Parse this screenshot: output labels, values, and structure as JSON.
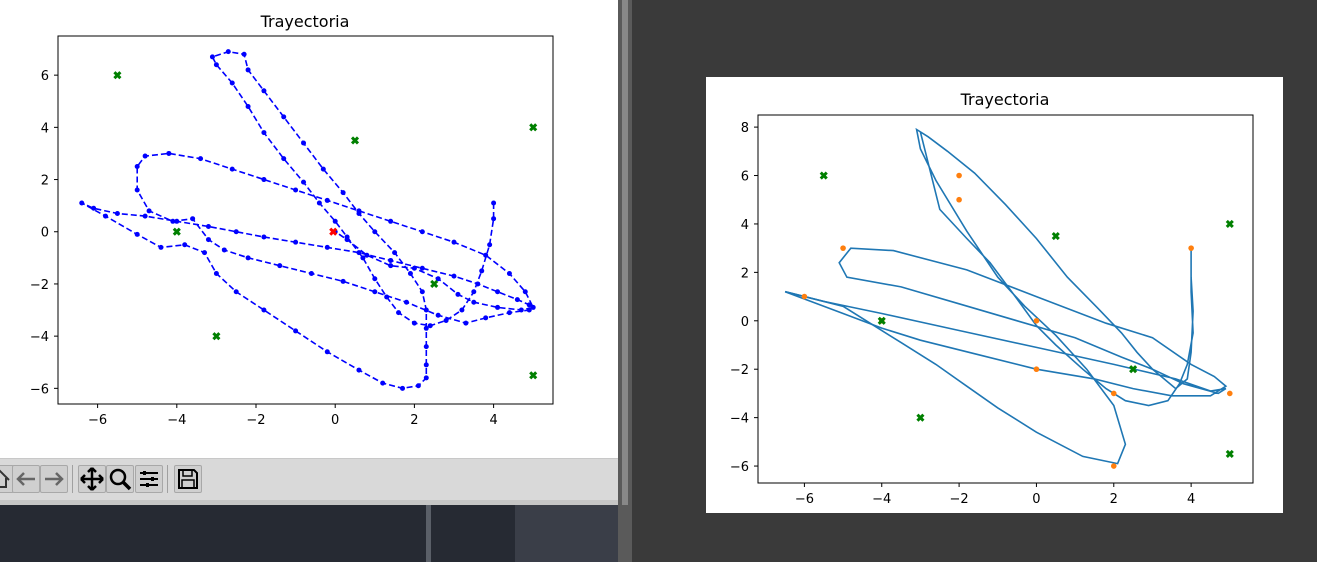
{
  "left_plot": {
    "chart_data": {
      "type": "scatter",
      "title": "Trayectoria",
      "xlim": [
        -7,
        5.5
      ],
      "ylim": [
        -6.6,
        7.5
      ],
      "x_ticks": [
        -6,
        -4,
        -2,
        0,
        2,
        4
      ],
      "y_ticks": [
        -6,
        -4,
        -2,
        0,
        2,
        4,
        6
      ],
      "grid": false,
      "series": [
        {
          "style": "blue dashed line with dot markers",
          "color": "#0000ff",
          "points": [
            [
              4.0,
              1.1
            ],
            [
              4.0,
              0.5
            ],
            [
              3.9,
              -0.5
            ],
            [
              3.7,
              -1.5
            ],
            [
              3.5,
              -2.3
            ],
            [
              3.2,
              -3.0
            ],
            [
              2.8,
              -3.4
            ],
            [
              2.4,
              -3.6
            ],
            [
              2.0,
              -3.5
            ],
            [
              1.6,
              -3.1
            ],
            [
              1.3,
              -2.5
            ],
            [
              1.0,
              -1.8
            ],
            [
              0.7,
              -1.0
            ],
            [
              0.3,
              -0.2
            ],
            [
              0.0,
              0.4
            ],
            [
              -0.4,
              1.1
            ],
            [
              -0.8,
              1.9
            ],
            [
              -1.3,
              2.8
            ],
            [
              -1.8,
              3.8
            ],
            [
              -2.2,
              4.8
            ],
            [
              -2.6,
              5.7
            ],
            [
              -3.0,
              6.4
            ],
            [
              -3.1,
              6.7
            ],
            [
              -2.7,
              6.9
            ],
            [
              -2.3,
              6.8
            ],
            [
              -2.2,
              6.2
            ],
            [
              -1.8,
              5.4
            ],
            [
              -1.3,
              4.4
            ],
            [
              -0.8,
              3.4
            ],
            [
              -0.3,
              2.4
            ],
            [
              0.2,
              1.5
            ],
            [
              0.6,
              0.7
            ],
            [
              1.0,
              0.0
            ],
            [
              1.5,
              -0.8
            ],
            [
              1.9,
              -1.6
            ],
            [
              2.2,
              -2.3
            ],
            [
              2.3,
              -3.0
            ],
            [
              2.3,
              -3.7
            ],
            [
              2.3,
              -4.4
            ],
            [
              2.3,
              -5.1
            ],
            [
              2.3,
              -5.6
            ],
            [
              2.1,
              -5.9
            ],
            [
              1.7,
              -6.0
            ],
            [
              1.2,
              -5.8
            ],
            [
              0.6,
              -5.3
            ],
            [
              -0.2,
              -4.6
            ],
            [
              -1.0,
              -3.8
            ],
            [
              -1.8,
              -3.0
            ],
            [
              -2.5,
              -2.3
            ],
            [
              -3.0,
              -1.6
            ],
            [
              -3.3,
              -0.8
            ],
            [
              -3.8,
              -0.5
            ],
            [
              -4.4,
              -0.6
            ],
            [
              -5.0,
              -0.1
            ],
            [
              -5.8,
              0.6
            ],
            [
              -6.4,
              1.1
            ],
            [
              -6.1,
              0.9
            ],
            [
              -5.5,
              0.7
            ],
            [
              -4.8,
              0.6
            ],
            [
              -4.0,
              0.4
            ],
            [
              -3.2,
              0.2
            ],
            [
              -2.5,
              0.0
            ],
            [
              -1.8,
              -0.2
            ],
            [
              -1.0,
              -0.4
            ],
            [
              -0.2,
              -0.6
            ],
            [
              0.6,
              -0.8
            ],
            [
              1.4,
              -1.1
            ],
            [
              2.2,
              -1.4
            ],
            [
              3.0,
              -1.7
            ],
            [
              3.6,
              -2.0
            ],
            [
              4.1,
              -2.3
            ],
            [
              4.6,
              -2.6
            ],
            [
              4.9,
              -2.8
            ],
            [
              4.9,
              -3.0
            ],
            [
              4.4,
              -3.1
            ],
            [
              3.8,
              -3.3
            ],
            [
              3.3,
              -3.5
            ],
            [
              2.6,
              -3.2
            ],
            [
              1.8,
              -2.7
            ],
            [
              1.0,
              -2.3
            ],
            [
              0.2,
              -1.9
            ],
            [
              -0.6,
              -1.6
            ],
            [
              -1.4,
              -1.3
            ],
            [
              -2.2,
              -1.0
            ],
            [
              -2.8,
              -0.7
            ],
            [
              -3.2,
              -0.3
            ],
            [
              -3.6,
              0.5
            ],
            [
              -4.1,
              0.4
            ],
            [
              -4.7,
              0.8
            ],
            [
              -5.0,
              1.6
            ],
            [
              -5.0,
              2.5
            ],
            [
              -4.8,
              2.9
            ],
            [
              -4.2,
              3.0
            ],
            [
              -3.4,
              2.8
            ],
            [
              -2.6,
              2.4
            ],
            [
              -1.8,
              2.0
            ],
            [
              -1.0,
              1.6
            ],
            [
              -0.2,
              1.2
            ],
            [
              0.6,
              0.8
            ],
            [
              1.4,
              0.4
            ],
            [
              2.2,
              0.0
            ],
            [
              3.0,
              -0.4
            ],
            [
              3.8,
              -0.9
            ],
            [
              4.4,
              -1.6
            ],
            [
              4.8,
              -2.3
            ],
            [
              5.0,
              -2.9
            ],
            [
              4.7,
              -3.0
            ],
            [
              4.1,
              -2.9
            ],
            [
              3.5,
              -2.7
            ],
            [
              3.1,
              -2.4
            ],
            [
              2.6,
              -1.8
            ],
            [
              2.0,
              -1.4
            ],
            [
              1.4,
              -1.3
            ],
            [
              0.8,
              -0.9
            ],
            [
              0.3,
              -0.3
            ],
            [
              0.0,
              0.0
            ]
          ]
        },
        {
          "style": "start marker red x",
          "color": "#ff0000",
          "points": [
            [
              -0.05,
              0.0
            ]
          ]
        },
        {
          "style": "green x markers",
          "color": "#008000",
          "points": [
            [
              -5.5,
              6
            ],
            [
              -4,
              0
            ],
            [
              -3,
              -4
            ],
            [
              0.5,
              3.5
            ],
            [
              2.5,
              -2
            ],
            [
              5,
              4
            ],
            [
              5,
              -5.5
            ]
          ]
        }
      ]
    }
  },
  "left_toolbar": {
    "icons": [
      "home-icon",
      "back-icon",
      "forward-icon",
      "pan-icon",
      "zoom-icon",
      "configure-subplots-icon",
      "save-icon"
    ]
  },
  "right_plot": {
    "chart_data": {
      "type": "line",
      "title": "Trayectoria",
      "xlim": [
        -7.2,
        5.6
      ],
      "ylim": [
        -6.7,
        8.5
      ],
      "x_ticks": [
        -6,
        -4,
        -2,
        0,
        2,
        4
      ],
      "y_ticks": [
        -6,
        -4,
        -2,
        0,
        2,
        4,
        6,
        8
      ],
      "grid": false,
      "series": [
        {
          "style": "steelblue solid line",
          "color": "#1f77b4",
          "points": [
            [
              -6.5,
              1.2
            ],
            [
              -5.0,
              0.6
            ],
            [
              -4.3,
              -0.1
            ],
            [
              -3.5,
              -0.9
            ],
            [
              -2.6,
              -1.8
            ],
            [
              -1.8,
              -2.7
            ],
            [
              -1.0,
              -3.6
            ],
            [
              0.0,
              -4.6
            ],
            [
              1.2,
              -5.6
            ],
            [
              2.1,
              -5.9
            ],
            [
              2.3,
              -5.1
            ],
            [
              2.0,
              -3.5
            ],
            [
              1.3,
              -2.0
            ],
            [
              0.5,
              -0.6
            ],
            [
              -0.3,
              0.6
            ],
            [
              -1.0,
              1.8
            ],
            [
              -1.8,
              3.7
            ],
            [
              -2.6,
              5.8
            ],
            [
              -3.0,
              7.1
            ],
            [
              -3.1,
              7.9
            ],
            [
              -2.8,
              7.6
            ],
            [
              -2.3,
              7.0
            ],
            [
              -1.6,
              6.1
            ],
            [
              -0.8,
              4.8
            ],
            [
              0.0,
              3.4
            ],
            [
              0.8,
              1.8
            ],
            [
              1.6,
              0.5
            ],
            [
              2.2,
              -0.5
            ],
            [
              2.6,
              -1.3
            ],
            [
              3.0,
              -2.0
            ],
            [
              3.6,
              -2.8
            ],
            [
              3.9,
              -2.4
            ],
            [
              4.0,
              -1.3
            ],
            [
              4.05,
              0.4
            ],
            [
              4.0,
              1.8
            ],
            [
              4.0,
              3.0
            ],
            [
              4.0,
              1.2
            ],
            [
              4.05,
              -0.5
            ],
            [
              3.9,
              -1.8
            ],
            [
              3.7,
              -2.6
            ],
            [
              3.4,
              -3.3
            ],
            [
              2.9,
              -3.5
            ],
            [
              2.3,
              -3.3
            ],
            [
              1.8,
              -2.8
            ],
            [
              1.2,
              -2.0
            ],
            [
              0.5,
              -1.0
            ],
            [
              0.0,
              -0.2
            ],
            [
              -0.5,
              0.9
            ],
            [
              -1.2,
              2.4
            ],
            [
              -1.8,
              3.4
            ],
            [
              -2.5,
              4.6
            ],
            [
              -3.0,
              7.8
            ]
          ]
        },
        {
          "style": "steelblue solid line (second loop)",
          "color": "#1f77b4",
          "points": [
            [
              -6.5,
              1.2
            ],
            [
              -5.5,
              0.8
            ],
            [
              -4.0,
              0.3
            ],
            [
              -2.0,
              -0.4
            ],
            [
              0.0,
              -1.1
            ],
            [
              2.0,
              -1.8
            ],
            [
              3.6,
              -2.4
            ],
            [
              4.5,
              -2.9
            ],
            [
              4.9,
              -2.8
            ],
            [
              4.7,
              -3.0
            ],
            [
              3.8,
              -2.6
            ],
            [
              3.0,
              -2.0
            ],
            [
              2.2,
              -1.5
            ],
            [
              1.0,
              -0.7
            ],
            [
              -0.5,
              0.0
            ],
            [
              -2.0,
              0.7
            ],
            [
              -3.5,
              1.4
            ],
            [
              -4.9,
              1.8
            ],
            [
              -5.1,
              2.4
            ],
            [
              -4.8,
              3.0
            ],
            [
              -3.7,
              2.9
            ],
            [
              -1.8,
              2.1
            ],
            [
              0.0,
              1.0
            ],
            [
              1.8,
              -0.1
            ],
            [
              3.0,
              -0.7
            ],
            [
              4.0,
              -1.8
            ],
            [
              4.6,
              -2.3
            ],
            [
              4.9,
              -2.7
            ],
            [
              4.5,
              -3.1
            ],
            [
              3.5,
              -3.1
            ],
            [
              2.5,
              -2.8
            ],
            [
              1.5,
              -2.4
            ],
            [
              0.0,
              -2.0
            ],
            [
              -1.5,
              -1.4
            ],
            [
              -3.0,
              -0.8
            ],
            [
              -4.0,
              -0.3
            ],
            [
              -5.0,
              0.3
            ],
            [
              -6.5,
              1.2
            ]
          ]
        },
        {
          "style": "orange dot markers",
          "color": "#ff7f0e",
          "points": [
            [
              -6,
              1
            ],
            [
              -5,
              3
            ],
            [
              -4,
              0
            ],
            [
              -2,
              5
            ],
            [
              -2,
              6
            ],
            [
              0,
              0
            ],
            [
              0,
              -2
            ],
            [
              2,
              -3
            ],
            [
              2,
              -6
            ],
            [
              4,
              3
            ],
            [
              5,
              -3
            ]
          ]
        },
        {
          "style": "green x markers",
          "color": "#008000",
          "points": [
            [
              -5.5,
              6
            ],
            [
              -4,
              0
            ],
            [
              -3,
              -4
            ],
            [
              0.5,
              3.5
            ],
            [
              2.5,
              -2
            ],
            [
              5,
              4
            ],
            [
              5,
              -5.5
            ]
          ]
        }
      ]
    }
  }
}
